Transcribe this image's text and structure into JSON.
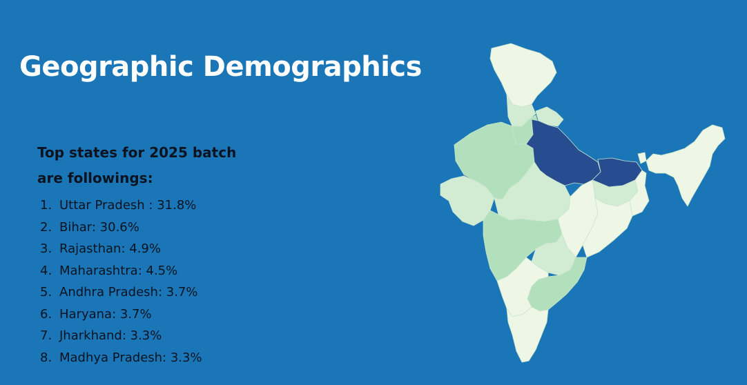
{
  "title": "Geographic Demographics",
  "subtitle": "Top states for 2025 batch are followings:",
  "states": [
    {
      "num": "1.",
      "label": "Uttar Pradesh : 31.8%"
    },
    {
      "num": "2.",
      "label": "Bihar: 30.6%"
    },
    {
      "num": "3.",
      "label": "Rajasthan: 4.9%"
    },
    {
      "num": "4.",
      "label": "Maharashtra: 4.5%"
    },
    {
      "num": "5.",
      "label": "Andhra Pradesh: 3.7%"
    },
    {
      "num": "6.",
      "label": "Haryana: 3.7%"
    },
    {
      "num": "7.",
      "label": "Jharkhand: 3.3%"
    },
    {
      "num": "8.",
      "label": "Madhya Pradesh: 3.3%"
    }
  ],
  "colors": {
    "background": "#1b76b8",
    "highest": "#274c8f",
    "medium": "#b2e0bd",
    "low": "#d2ecd3",
    "lowest": "#eef7e6"
  }
}
